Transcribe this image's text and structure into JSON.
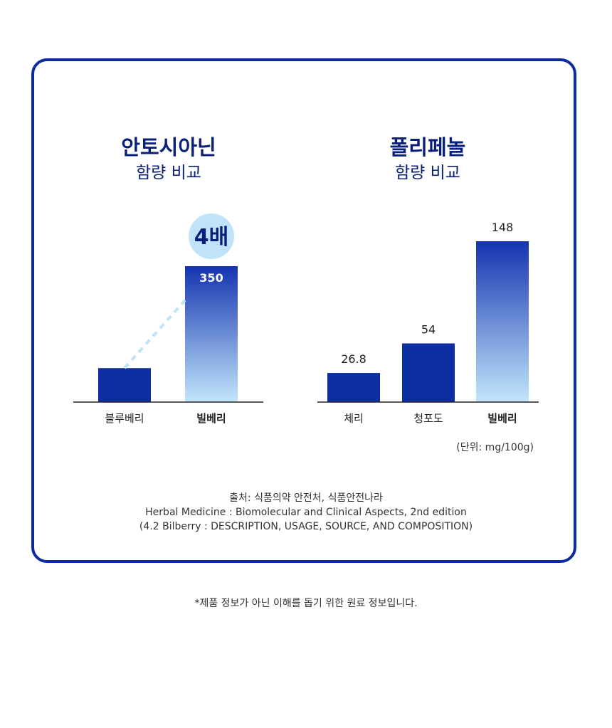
{
  "chart_data": [
    {
      "type": "bar",
      "title": "안토시아닌",
      "subtitle": "함량 비교",
      "categories": [
        "블루베리",
        "빌베리"
      ],
      "values": [
        87.5,
        350
      ],
      "data_labels": [
        "",
        "350"
      ],
      "ylim": [
        0,
        350
      ],
      "badge": "4배",
      "emphasized_category": "빌베리",
      "grid": false
    },
    {
      "type": "bar",
      "title": "폴리페놀",
      "subtitle": "함량 비교",
      "categories": [
        "체리",
        "청포도",
        "빌베리"
      ],
      "values": [
        26.8,
        54,
        148
      ],
      "data_labels": [
        "26.8",
        "54",
        "148"
      ],
      "ylim": [
        0,
        148
      ],
      "emphasized_category": "빌베리",
      "grid": false
    }
  ],
  "unit_note": "(단위: mg/100g)",
  "source_lines": [
    "출처: 식품의약 안전처, 식품안전나라",
    "Herbal Medicine : Biomolecular and Clinical Aspects, 2nd edition",
    "(4.2 Bilberry : DESCRIPTION, USAGE, SOURCE, AND COMPOSITION)"
  ],
  "disclaimer": "*제품 정보가 아닌 이해를 돕기 위한 원료 정보입니다.",
  "colors": {
    "border": "#0d2b9a",
    "title": "#0a1f7a",
    "bar_solid": "#0d2ea0",
    "bar_gradient_top": "#1533b0",
    "bar_gradient_bottom": "#c2e6fb",
    "badge_bg": "#bfe4fa",
    "dashed_line": "#bfe4fa"
  }
}
